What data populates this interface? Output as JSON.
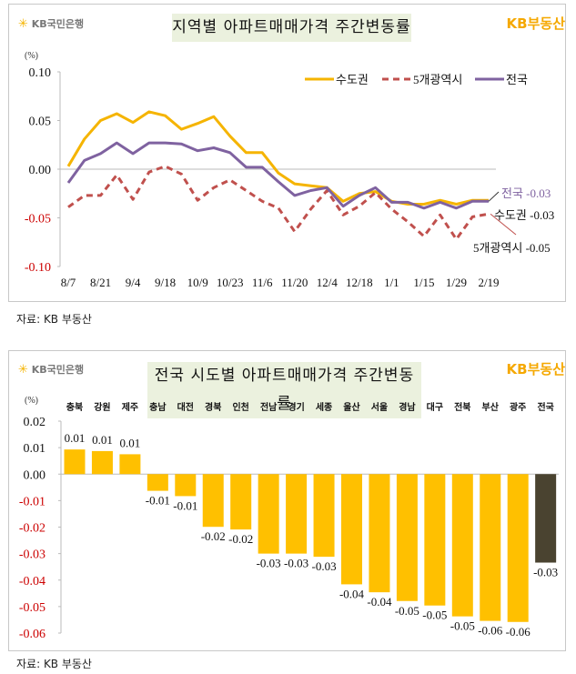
{
  "brand": {
    "bank": "KB국민은행",
    "realestate": "KB부동산"
  },
  "source_label": "자료: KB 부동산",
  "colors": {
    "metro": "#f5b400",
    "metro5": "#c0504d",
    "national": "#7f62a0",
    "bar": "#ffc000",
    "bar_total": "#4a4330",
    "negative_tick": "#cc0000"
  },
  "chart_data": [
    {
      "type": "line",
      "title": "지역별 아파트매매가격 주간변동률",
      "unit": "(%)",
      "ylim": [
        -0.1,
        0.1
      ],
      "yticks": [
        "0.10",
        "0.05",
        "0.00",
        "-0.05",
        "-0.10"
      ],
      "xticks": [
        "8/7",
        "8/21",
        "9/4",
        "9/18",
        "10/9",
        "10/23",
        "11/6",
        "11/20",
        "12/4",
        "12/18",
        "1/1",
        "1/15",
        "1/29",
        "2/19"
      ],
      "x": [
        "8/7",
        "8/14",
        "8/21",
        "8/28",
        "9/4",
        "9/11",
        "9/18",
        "9/25",
        "10/9",
        "10/16",
        "10/23",
        "10/30",
        "11/6",
        "11/13",
        "11/20",
        "11/27",
        "12/4",
        "12/11",
        "12/18",
        "12/25",
        "1/1",
        "1/8",
        "1/15",
        "1/22",
        "1/29",
        "2/5",
        "2/19"
      ],
      "legend": "top-right",
      "series": [
        {
          "name": "수도권",
          "style": "solid",
          "values": [
            0.003,
            0.031,
            0.05,
            0.057,
            0.048,
            0.059,
            0.055,
            0.041,
            0.047,
            0.054,
            0.034,
            0.017,
            0.017,
            -0.004,
            -0.015,
            -0.017,
            -0.019,
            -0.033,
            -0.025,
            -0.023,
            -0.033,
            -0.036,
            -0.036,
            -0.032,
            -0.036,
            -0.032,
            -0.032
          ]
        },
        {
          "name": "5개광역시",
          "style": "dashed",
          "values": [
            -0.039,
            -0.027,
            -0.027,
            -0.006,
            -0.031,
            -0.003,
            0.003,
            -0.005,
            -0.032,
            -0.019,
            -0.011,
            -0.022,
            -0.033,
            -0.04,
            -0.064,
            -0.041,
            -0.022,
            -0.047,
            -0.038,
            -0.024,
            -0.041,
            -0.054,
            -0.069,
            -0.047,
            -0.072,
            -0.049,
            -0.046
          ]
        },
        {
          "name": "전국",
          "style": "solid",
          "values": [
            -0.014,
            0.009,
            0.016,
            0.027,
            0.016,
            0.027,
            0.027,
            0.026,
            0.019,
            0.022,
            0.017,
            0.002,
            0.002,
            -0.013,
            -0.027,
            -0.022,
            -0.019,
            -0.038,
            -0.027,
            -0.019,
            -0.034,
            -0.034,
            -0.04,
            -0.034,
            -0.04,
            -0.033,
            -0.033
          ]
        }
      ],
      "annotations": [
        {
          "series": "전국",
          "text": "전국 -0.03"
        },
        {
          "series": "수도권",
          "text": "수도권 -0.03"
        },
        {
          "series": "5개광역시",
          "text": "5개광역시 -0.05"
        }
      ]
    },
    {
      "type": "bar",
      "title": "전국 시도별 아파트매매가격 주간변동률",
      "unit": "(%)",
      "ylim": [
        -0.06,
        0.02
      ],
      "yticks": [
        "0.02",
        "0.01",
        "0.00",
        "-0.01",
        "-0.02",
        "-0.03",
        "-0.04",
        "-0.05",
        "-0.06"
      ],
      "categories": [
        "충북",
        "강원",
        "제주",
        "충남",
        "대전",
        "경북",
        "인천",
        "전남",
        "경기",
        "세종",
        "울산",
        "서울",
        "경남",
        "대구",
        "전북",
        "부산",
        "광주",
        "전국"
      ],
      "values": [
        0.0093,
        0.0087,
        0.0075,
        -0.0063,
        -0.0083,
        -0.0199,
        -0.0209,
        -0.03,
        -0.03,
        -0.0312,
        -0.0416,
        -0.0446,
        -0.0479,
        -0.0496,
        -0.0537,
        -0.0554,
        -0.0558,
        -0.0334
      ],
      "labels": [
        "0.01",
        "0.01",
        "0.01",
        "-0.01",
        "-0.01",
        "-0.02",
        "-0.02",
        "-0.03",
        "-0.03",
        "-0.03",
        "-0.04",
        "-0.04",
        "-0.05",
        "-0.05",
        "-0.05",
        "-0.06",
        "-0.06",
        "-0.03"
      ]
    }
  ]
}
